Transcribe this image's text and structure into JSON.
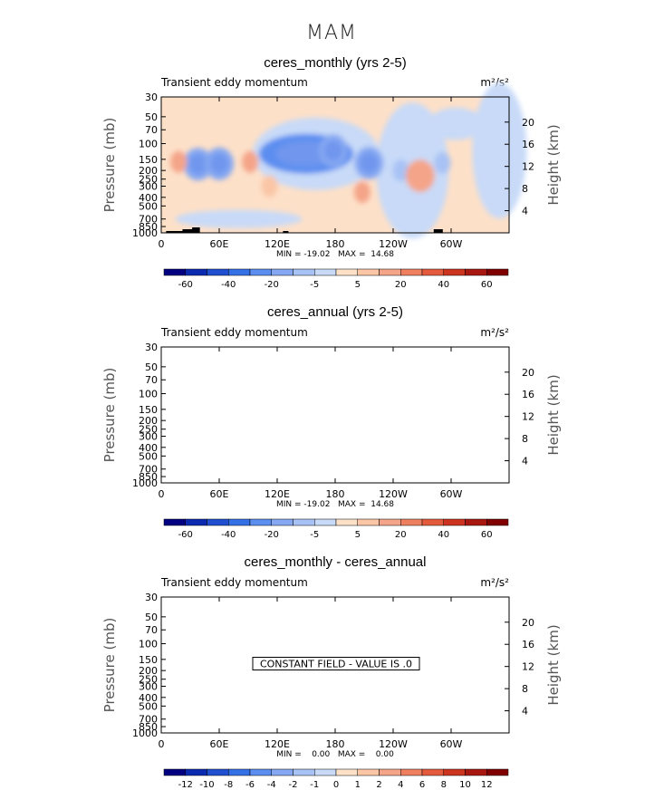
{
  "figure_title": "MAM",
  "chart_data": [
    {
      "type": "heatmap",
      "title": "ceres_monthly (yrs 2-5)",
      "subtitle_left": "Transient eddy momentum",
      "units": "m²/s²",
      "ylabel": "Pressure (mb)",
      "ylabel_right": "Height (km)",
      "x_ticks": [
        "0",
        "60E",
        "120E",
        "180",
        "120W",
        "60W"
      ],
      "x_tick_values": [
        0,
        60,
        120,
        180,
        240,
        300
      ],
      "xlim": [
        0,
        360
      ],
      "pressure_ticks": [
        "30",
        "50",
        "70",
        "100",
        "150",
        "200",
        "250",
        "300",
        "400",
        "500",
        "700",
        "850",
        "1000"
      ],
      "pressure_values": [
        30,
        50,
        70,
        100,
        150,
        200,
        250,
        300,
        400,
        500,
        700,
        850,
        1000
      ],
      "height_ticks": [
        "4",
        "8",
        "12",
        "16",
        "20"
      ],
      "height_values": [
        4,
        8,
        12,
        16,
        20
      ],
      "stats": "MIN = -19.02   MAX =  14.68",
      "features": [
        {
          "lon": 0,
          "p": 1000,
          "val": 0
        },
        {
          "lon": 38,
          "p": 170,
          "val": -12
        },
        {
          "lon": 60,
          "p": 168,
          "val": -14
        },
        {
          "lon": 92,
          "p": 160,
          "val": 8
        },
        {
          "lon": 18,
          "p": 160,
          "val": 6
        },
        {
          "lon": 112,
          "p": 300,
          "val": 2
        },
        {
          "lon": 150,
          "p": 130,
          "val": -19.02
        },
        {
          "lon": 178,
          "p": 120,
          "val": -12
        },
        {
          "lon": 215,
          "p": 165,
          "val": -14
        },
        {
          "lon": 208,
          "p": 350,
          "val": 6
        },
        {
          "lon": 248,
          "p": 200,
          "val": -8
        },
        {
          "lon": 268,
          "p": 230,
          "val": 10
        },
        {
          "lon": 291,
          "p": 165,
          "val": -6
        },
        {
          "lon": 336,
          "p": 110,
          "val": -3
        }
      ],
      "colorbar": {
        "labels": [
          "-60",
          "-40",
          "-20",
          "-5",
          "5",
          "20",
          "40",
          "60"
        ],
        "colors": [
          "#000080",
          "#0a2ab0",
          "#2050d0",
          "#3470e6",
          "#5c8ef0",
          "#86a8f2",
          "#a8c2f5",
          "#c8daf8",
          "#fde0c8",
          "#fac6a6",
          "#f4a488",
          "#ee8060",
          "#e35a3c",
          "#cc3420",
          "#a81810",
          "#800000"
        ]
      }
    },
    {
      "type": "heatmap",
      "title": "ceres_annual (yrs 2-5)",
      "subtitle_left": "Transient eddy momentum",
      "units": "m²/s²",
      "ylabel": "Pressure (mb)",
      "ylabel_right": "Height (km)",
      "x_ticks": [
        "0",
        "60E",
        "120E",
        "180",
        "120W",
        "60W"
      ],
      "x_tick_values": [
        0,
        60,
        120,
        180,
        240,
        300
      ],
      "xlim": [
        0,
        360
      ],
      "pressure_ticks": [
        "30",
        "50",
        "70",
        "100",
        "150",
        "200",
        "250",
        "300",
        "400",
        "500",
        "700",
        "850",
        "1000"
      ],
      "pressure_values": [
        30,
        50,
        70,
        100,
        150,
        200,
        250,
        300,
        400,
        500,
        700,
        850,
        1000
      ],
      "height_ticks": [
        "4",
        "8",
        "12",
        "16",
        "20"
      ],
      "height_values": [
        4,
        8,
        12,
        16,
        20
      ],
      "stats": "MIN = -19.02   MAX =  14.68",
      "colorbar": {
        "labels": [
          "-60",
          "-40",
          "-20",
          "-5",
          "5",
          "20",
          "40",
          "60"
        ],
        "colors": [
          "#000080",
          "#0a2ab0",
          "#2050d0",
          "#3470e6",
          "#5c8ef0",
          "#86a8f2",
          "#a8c2f5",
          "#c8daf8",
          "#fde0c8",
          "#fac6a6",
          "#f4a488",
          "#ee8060",
          "#e35a3c",
          "#cc3420",
          "#a81810",
          "#800000"
        ]
      }
    },
    {
      "type": "heatmap",
      "title": "ceres_monthly - ceres_annual",
      "subtitle_left": "Transient eddy momentum",
      "units": "m²/s²",
      "ylabel": "Pressure (mb)",
      "ylabel_right": "Height (km)",
      "x_ticks": [
        "0",
        "60E",
        "120E",
        "180",
        "120W",
        "60W"
      ],
      "x_tick_values": [
        0,
        60,
        120,
        180,
        240,
        300
      ],
      "xlim": [
        0,
        360
      ],
      "pressure_ticks": [
        "30",
        "50",
        "70",
        "100",
        "150",
        "200",
        "250",
        "300",
        "400",
        "500",
        "700",
        "850",
        "1000"
      ],
      "pressure_values": [
        30,
        50,
        70,
        100,
        150,
        200,
        250,
        300,
        400,
        500,
        700,
        850,
        1000
      ],
      "height_ticks": [
        "4",
        "8",
        "12",
        "16",
        "20"
      ],
      "height_values": [
        4,
        8,
        12,
        16,
        20
      ],
      "stats": "MIN =    0.00   MAX =    0.00",
      "annotation": "CONSTANT FIELD - VALUE IS .0",
      "colorbar": {
        "labels": [
          "-12",
          "-10",
          "-8",
          "-6",
          "-4",
          "-2",
          "-1",
          "0",
          "1",
          "2",
          "4",
          "6",
          "8",
          "10",
          "12"
        ],
        "colors": [
          "#000080",
          "#0a2ab0",
          "#2050d0",
          "#3470e6",
          "#5c8ef0",
          "#86a8f2",
          "#a8c2f5",
          "#c8daf8",
          "#fde0c8",
          "#fac6a6",
          "#f4a488",
          "#ee8060",
          "#e35a3c",
          "#cc3420",
          "#a81810",
          "#800000"
        ]
      }
    }
  ]
}
